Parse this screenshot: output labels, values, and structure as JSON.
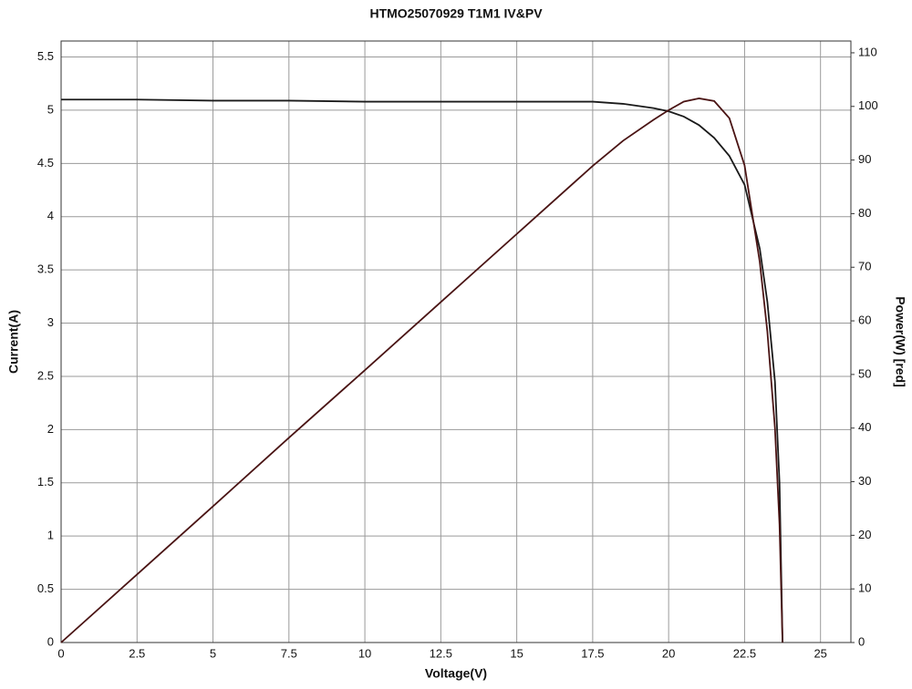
{
  "chart_data": {
    "type": "line",
    "title": "HTMO25070929 T1M1 IV&PV",
    "x_label": "Voltage(V)",
    "y_label": "Current(A)",
    "y2_label": "Power(W) [red]",
    "x": [
      0,
      2.5,
      5,
      7.5,
      10,
      12.5,
      15,
      17.5,
      18.5,
      19.5,
      20,
      20.5,
      21,
      21.5,
      22,
      22.5,
      23,
      23.25,
      23.5,
      23.65,
      23.75
    ],
    "series": [
      {
        "name": "Current",
        "color": "#1a1a1a",
        "values": [
          5.1,
          5.1,
          5.09,
          5.09,
          5.08,
          5.08,
          5.08,
          5.08,
          5.06,
          5.02,
          4.99,
          4.94,
          4.86,
          4.74,
          4.57,
          4.3,
          3.7,
          3.2,
          2.45,
          1.5,
          0
        ]
      },
      {
        "name": "Power",
        "color": "#4a1414",
        "axis": "y2",
        "values": [
          0,
          12.7,
          25.4,
          38.2,
          50.8,
          63.5,
          76.2,
          88.9,
          93.6,
          97.5,
          99.3,
          100.9,
          101.5,
          101.0,
          97.8,
          89.0,
          71.0,
          58.0,
          40.0,
          22.0,
          0
        ]
      }
    ],
    "xlim": [
      0,
      26
    ],
    "xticks": [
      0,
      2.5,
      5,
      7.5,
      10,
      12.5,
      15,
      17.5,
      20,
      22.5,
      25
    ],
    "ylim": [
      0,
      5.65
    ],
    "yticks": [
      0,
      0.5,
      1,
      1.5,
      2,
      2.5,
      3,
      3.5,
      4,
      4.5,
      5,
      5.5
    ],
    "y2lim": [
      0,
      112.2
    ],
    "y2ticks": [
      0,
      10,
      20,
      30,
      40,
      50,
      60,
      70,
      80,
      90,
      100,
      110
    ],
    "grid": true
  }
}
